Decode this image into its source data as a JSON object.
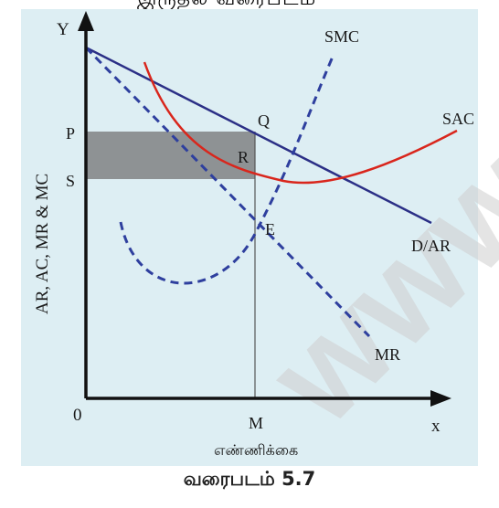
{
  "top_partial_text": "இருதல் வரைபடம்",
  "axes": {
    "y_label": "AR, AC, MR & MC",
    "y_letter": "Y",
    "x_letter": "x",
    "origin": "0",
    "x_label": "எண்ணிக்கை"
  },
  "curve_labels": {
    "smc": "SMC",
    "sac": "SAC",
    "dar": "D/AR",
    "mr": "MR"
  },
  "points": {
    "p": "P",
    "s": "S",
    "q": "Q",
    "r": "R",
    "e": "E",
    "m": "M"
  },
  "caption": "வரைபடம் 5.7",
  "watermark": "www.P",
  "colors": {
    "panel": "#ddeef3",
    "demand_line": "#2b2f86",
    "mr_line": "#2e3f9e",
    "smc_curve": "#2e3f9e",
    "sac_curve": "#d9261c",
    "profit_rect": "#8e9294",
    "axis": "#111111"
  }
}
